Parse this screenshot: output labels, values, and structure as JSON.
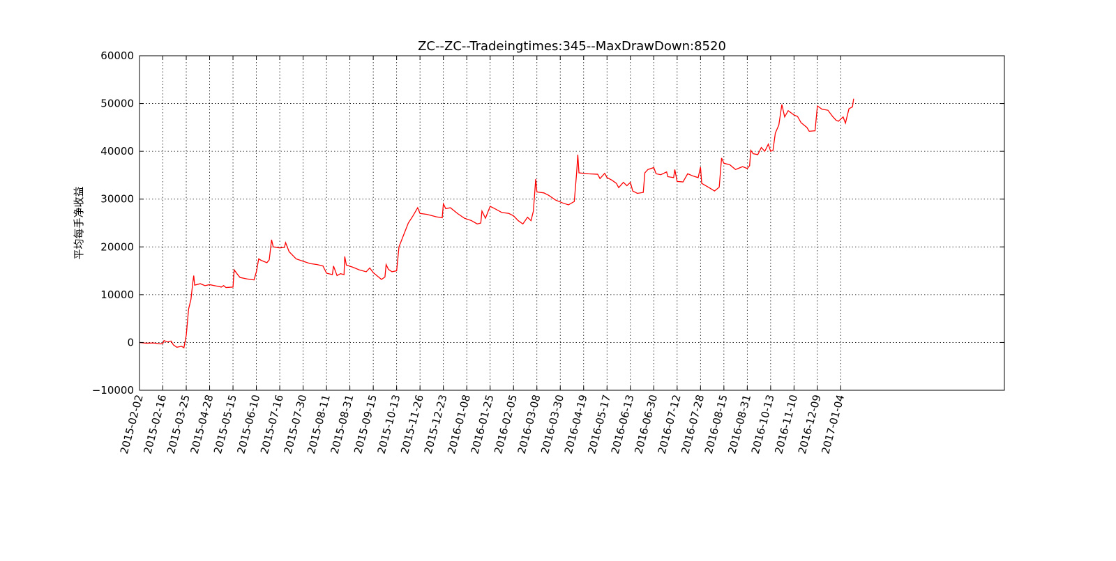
{
  "chart_data": {
    "type": "line",
    "title": "ZC--ZC--Tradeingtimes:345--MaxDrawDown:8520",
    "xlabel": "",
    "ylabel": "平均每手净收益",
    "ylim": [
      -10000,
      60000
    ],
    "yticks": [
      -10000,
      0,
      10000,
      20000,
      30000,
      40000,
      50000,
      60000
    ],
    "ytick_labels": [
      "−10000",
      "0",
      "10000",
      "20000",
      "30000",
      "40000",
      "50000",
      "60000"
    ],
    "xlim_index": [
      0,
      37
    ],
    "xticks": [
      "2015-02-02",
      "2015-02-16",
      "2015-03-25",
      "2015-04-28",
      "2015-05-15",
      "2015-06-10",
      "2015-07-16",
      "2015-07-30",
      "2015-08-11",
      "2015-08-31",
      "2015-09-15",
      "2015-10-13",
      "2015-11-26",
      "2015-12-23",
      "2016-01-08",
      "2016-01-25",
      "2016-02-05",
      "2016-03-08",
      "2016-03-30",
      "2016-04-19",
      "2016-05-17",
      "2016-06-13",
      "2016-06-30",
      "2016-07-12",
      "2016-07-28",
      "2016-08-15",
      "2016-08-31",
      "2016-10-13",
      "2016-11-10",
      "2016-12-09",
      "2017-01-04"
    ],
    "grid": true,
    "line_color": "#ff0000",
    "series": [
      {
        "values": [
          [
            0.0,
            0
          ],
          [
            0.3,
            -150
          ],
          [
            0.6,
            -100
          ],
          [
            0.9,
            -300
          ],
          [
            1.0,
            -200
          ],
          [
            1.05,
            400
          ],
          [
            1.2,
            100
          ],
          [
            1.35,
            300
          ],
          [
            1.45,
            -500
          ],
          [
            1.6,
            -1000
          ],
          [
            1.8,
            -800
          ],
          [
            1.9,
            -1100
          ],
          [
            2.0,
            1500
          ],
          [
            2.1,
            7000
          ],
          [
            2.2,
            9000
          ],
          [
            2.28,
            12500
          ],
          [
            2.32,
            14000
          ],
          [
            2.36,
            12000
          ],
          [
            2.6,
            12300
          ],
          [
            2.8,
            11900
          ],
          [
            3.0,
            12100
          ],
          [
            3.3,
            11800
          ],
          [
            3.5,
            11600
          ],
          [
            3.6,
            11900
          ],
          [
            3.7,
            11500
          ],
          [
            4.0,
            11600
          ],
          [
            4.05,
            15200
          ],
          [
            4.2,
            14200
          ],
          [
            4.3,
            13600
          ],
          [
            4.6,
            13300
          ],
          [
            4.9,
            13100
          ],
          [
            5.0,
            14800
          ],
          [
            5.1,
            17500
          ],
          [
            5.2,
            17200
          ],
          [
            5.45,
            16700
          ],
          [
            5.55,
            17300
          ],
          [
            5.65,
            21500
          ],
          [
            5.72,
            20000
          ],
          [
            6.0,
            19800
          ],
          [
            6.2,
            19900
          ],
          [
            6.25,
            20900
          ],
          [
            6.4,
            19000
          ],
          [
            6.7,
            17500
          ],
          [
            7.0,
            17000
          ],
          [
            7.3,
            16500
          ],
          [
            7.6,
            16300
          ],
          [
            7.85,
            16000
          ],
          [
            8.0,
            14500
          ],
          [
            8.25,
            14200
          ],
          [
            8.3,
            16000
          ],
          [
            8.45,
            14000
          ],
          [
            8.6,
            14400
          ],
          [
            8.75,
            14200
          ],
          [
            8.78,
            18000
          ],
          [
            8.85,
            16200
          ],
          [
            9.1,
            15800
          ],
          [
            9.4,
            15200
          ],
          [
            9.7,
            14800
          ],
          [
            9.85,
            15600
          ],
          [
            10.0,
            14600
          ],
          [
            10.2,
            13800
          ],
          [
            10.35,
            13200
          ],
          [
            10.5,
            13700
          ],
          [
            10.55,
            16300
          ],
          [
            10.65,
            15300
          ],
          [
            10.8,
            14800
          ],
          [
            11.0,
            15000
          ],
          [
            11.1,
            20000
          ],
          [
            11.3,
            22500
          ],
          [
            11.5,
            25000
          ],
          [
            11.7,
            26500
          ],
          [
            11.9,
            28200
          ],
          [
            12.0,
            27000
          ],
          [
            12.3,
            26800
          ],
          [
            12.7,
            26300
          ],
          [
            12.95,
            26100
          ],
          [
            13.0,
            29000
          ],
          [
            13.1,
            28000
          ],
          [
            13.3,
            28200
          ],
          [
            13.6,
            27000
          ],
          [
            13.9,
            26000
          ],
          [
            14.2,
            25500
          ],
          [
            14.45,
            24800
          ],
          [
            14.6,
            25000
          ],
          [
            14.65,
            27500
          ],
          [
            14.8,
            26000
          ],
          [
            15.0,
            28500
          ],
          [
            15.2,
            28000
          ],
          [
            15.5,
            27200
          ],
          [
            15.8,
            27000
          ],
          [
            16.0,
            26500
          ],
          [
            16.2,
            25500
          ],
          [
            16.4,
            24800
          ],
          [
            16.6,
            26200
          ],
          [
            16.75,
            25500
          ],
          [
            16.85,
            27500
          ],
          [
            16.95,
            34200
          ],
          [
            17.0,
            31500
          ],
          [
            17.3,
            31300
          ],
          [
            17.5,
            30800
          ],
          [
            17.8,
            29800
          ],
          [
            18.1,
            29200
          ],
          [
            18.35,
            28800
          ],
          [
            18.6,
            29500
          ],
          [
            18.7,
            35500
          ],
          [
            18.75,
            39300
          ],
          [
            18.8,
            35500
          ],
          [
            19.2,
            35300
          ],
          [
            19.6,
            35200
          ],
          [
            19.7,
            34300
          ],
          [
            19.9,
            35400
          ],
          [
            20.0,
            34500
          ],
          [
            20.2,
            34000
          ],
          [
            20.4,
            33300
          ],
          [
            20.5,
            32400
          ],
          [
            20.7,
            33500
          ],
          [
            20.85,
            32800
          ],
          [
            21.0,
            33500
          ],
          [
            21.1,
            31700
          ],
          [
            21.3,
            31200
          ],
          [
            21.55,
            31400
          ],
          [
            21.62,
            35500
          ],
          [
            21.75,
            36200
          ],
          [
            22.0,
            36600
          ],
          [
            22.1,
            35300
          ],
          [
            22.3,
            35100
          ],
          [
            22.55,
            35700
          ],
          [
            22.6,
            34700
          ],
          [
            22.85,
            34500
          ],
          [
            22.9,
            36200
          ],
          [
            23.0,
            33700
          ],
          [
            23.25,
            33600
          ],
          [
            23.45,
            35300
          ],
          [
            23.7,
            34800
          ],
          [
            23.9,
            34500
          ],
          [
            24.0,
            36700
          ],
          [
            24.05,
            33300
          ],
          [
            24.3,
            32600
          ],
          [
            24.6,
            31700
          ],
          [
            24.8,
            32500
          ],
          [
            24.9,
            38600
          ],
          [
            25.0,
            37500
          ],
          [
            25.25,
            37200
          ],
          [
            25.5,
            36200
          ],
          [
            25.8,
            36800
          ],
          [
            26.0,
            36400
          ],
          [
            26.1,
            37000
          ],
          [
            26.15,
            40200
          ],
          [
            26.25,
            39500
          ],
          [
            26.45,
            39300
          ],
          [
            26.6,
            40800
          ],
          [
            26.75,
            40000
          ],
          [
            26.9,
            41500
          ],
          [
            27.0,
            40000
          ],
          [
            27.1,
            40200
          ],
          [
            27.2,
            43800
          ],
          [
            27.35,
            45500
          ],
          [
            27.48,
            49800
          ],
          [
            27.6,
            47200
          ],
          [
            27.75,
            48500
          ],
          [
            28.0,
            47600
          ],
          [
            28.15,
            47300
          ],
          [
            28.3,
            46000
          ],
          [
            28.55,
            45000
          ],
          [
            28.65,
            44200
          ],
          [
            28.9,
            44300
          ],
          [
            29.0,
            49500
          ],
          [
            29.2,
            48800
          ],
          [
            29.45,
            48600
          ],
          [
            29.65,
            47300
          ],
          [
            29.8,
            46500
          ],
          [
            29.9,
            46300
          ],
          [
            30.1,
            47200
          ],
          [
            30.2,
            45900
          ],
          [
            30.35,
            48900
          ],
          [
            30.5,
            49300
          ],
          [
            30.55,
            51000
          ]
        ]
      }
    ]
  }
}
